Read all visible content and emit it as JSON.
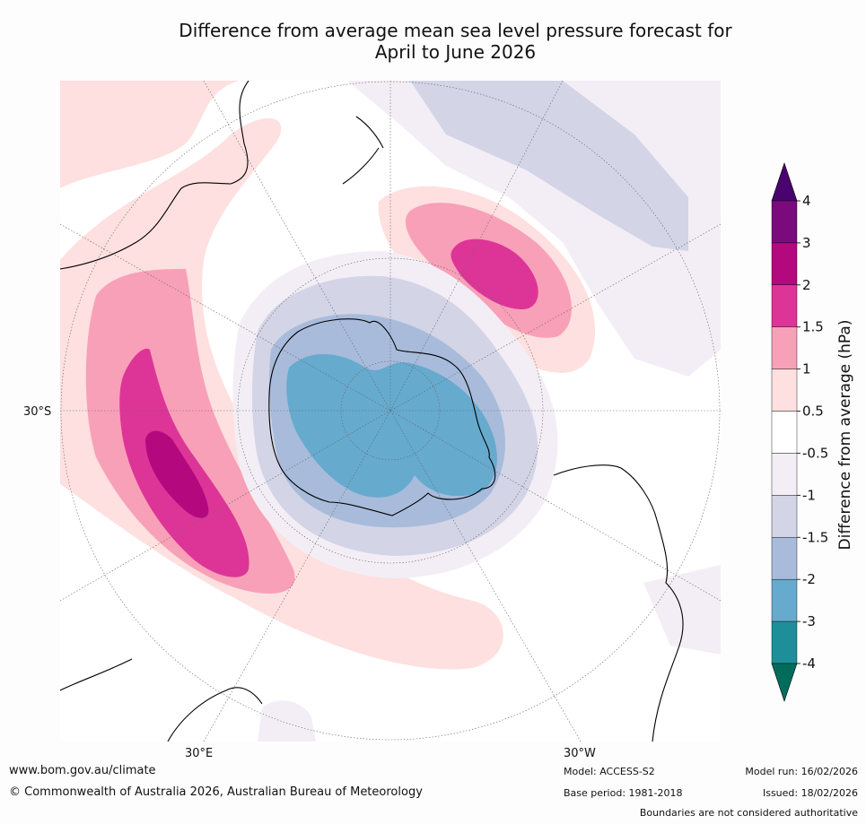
{
  "title": {
    "line1": "Difference from average mean sea level pressure forecast for",
    "line2": "April to June 2026"
  },
  "map": {
    "projection": "south-polar-stereographic",
    "labels": {
      "lat": "30°S",
      "lon_east": "30°E",
      "lon_west": "30°W"
    },
    "regions": [
      {
        "name": "positive-anomaly-indian-ocean",
        "max_class": "3"
      },
      {
        "name": "positive-anomaly-south-pacific",
        "max_class": "2"
      },
      {
        "name": "negative-anomaly-antarctica",
        "min_class": "-3"
      },
      {
        "name": "negative-anomaly-pacific",
        "min_class": "-1.5"
      }
    ]
  },
  "colorbar": {
    "title": "Difference from average (hPa)",
    "ticks": [
      "4",
      "3",
      "2",
      "1.5",
      "1",
      "0.5",
      "-0.5",
      "-1",
      "-1.5",
      "-2",
      "-3",
      "-4"
    ],
    "colors": [
      "#7b0a7c",
      "#b3087e",
      "#dd3597",
      "#f8a0b8",
      "#fde0df",
      "#ffffff",
      "#f3eef5",
      "#d3d4e6",
      "#a8bbdb",
      "#66aace",
      "#1e8f98"
    ],
    "over_color": "#4a036e",
    "under_color": "#006d5c"
  },
  "footer": {
    "url": "www.bom.gov.au/climate",
    "copyright": "© Commonwealth of Australia 2026, Australian Bureau of Meteorology",
    "model": "Model: ACCESS-S2",
    "base_period": "Base period: 1981-2018",
    "model_run": "Model run: 16/02/2026",
    "issued": "Issued: 18/02/2026",
    "disclaimer": "Boundaries are not considered authoritative"
  }
}
